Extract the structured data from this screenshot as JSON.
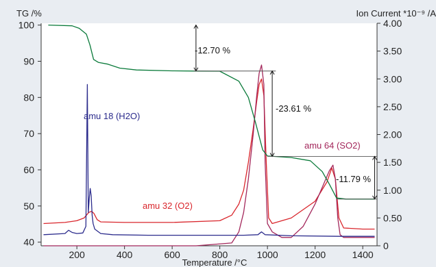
{
  "colors": {
    "background": "#e9edf2",
    "plot_background": "#ffffff",
    "axis": "#333333",
    "tg": "#0a7a3a",
    "h2o": "#2b2b8c",
    "o2": "#d9252b",
    "so2": "#a3275b",
    "annotation": "#555555"
  },
  "chart_data": {
    "type": "line",
    "title": "",
    "xlabel": "Temperature /°C",
    "ylabel_left": "TG /%",
    "ylabel_right": "Ion Current *10⁻⁹ /A",
    "xlim": [
      50,
      1460
    ],
    "ylim_left": [
      39,
      100.5
    ],
    "ylim_right": [
      0,
      4.0
    ],
    "x_ticks": [
      200,
      400,
      600,
      800,
      1000,
      1200,
      1400
    ],
    "y_left_ticks": [
      40,
      50,
      60,
      70,
      80,
      90,
      100
    ],
    "y_right_ticks": [
      "0",
      "0.50",
      "1.00",
      "1.50",
      "2.00",
      "2.50",
      "3.00",
      "3.50",
      "4.00"
    ],
    "grid": false,
    "series": [
      {
        "name": "",
        "axis": "left",
        "color": "#0a7a3a",
        "x": [
          80,
          180,
          210,
          240,
          255,
          270,
          290,
          330,
          380,
          450,
          600,
          700,
          800,
          880,
          920,
          950,
          980,
          1000,
          1030,
          1100,
          1180,
          1230,
          1260,
          1290,
          1330,
          1400,
          1450
        ],
        "y": [
          100,
          99.8,
          99.1,
          97.5,
          94.5,
          90.5,
          89.7,
          89.2,
          88.1,
          87.6,
          87.35,
          87.3,
          87.25,
          84.5,
          80.0,
          73.0,
          65.5,
          63.8,
          63.7,
          63.4,
          62.5,
          59.5,
          56.0,
          52.2,
          51.9,
          51.9,
          51.9
        ]
      },
      {
        "name": "amu 18 (H2O)",
        "axis": "right",
        "color": "#2b2b8c",
        "x": [
          60,
          150,
          165,
          180,
          200,
          225,
          238,
          244,
          248,
          252,
          256,
          260,
          264,
          268,
          275,
          300,
          350,
          500,
          700,
          900,
          960,
          975,
          990,
          1100,
          1300,
          1400,
          1450
        ],
        "y": [
          0.2,
          0.22,
          0.28,
          0.24,
          0.22,
          0.23,
          0.35,
          2.9,
          0.6,
          0.85,
          1.03,
          0.9,
          0.55,
          0.4,
          0.3,
          0.22,
          0.2,
          0.19,
          0.19,
          0.19,
          0.2,
          0.25,
          0.2,
          0.18,
          0.17,
          0.17,
          0.17
        ]
      },
      {
        "name": "amu 32 (O2)",
        "axis": "right",
        "color": "#d9252b",
        "x": [
          60,
          150,
          200,
          230,
          250,
          262,
          272,
          285,
          300,
          400,
          600,
          800,
          850,
          880,
          900,
          920,
          940,
          955,
          965,
          975,
          985,
          995,
          1005,
          1020,
          1100,
          1200,
          1250,
          1270,
          1285,
          1300,
          1320,
          1400,
          1450
        ],
        "y": [
          0.4,
          0.42,
          0.45,
          0.5,
          0.6,
          0.62,
          0.58,
          0.47,
          0.43,
          0.42,
          0.42,
          0.45,
          0.55,
          0.75,
          1.0,
          1.5,
          2.1,
          2.6,
          2.9,
          3.0,
          2.7,
          1.5,
          0.5,
          0.4,
          0.5,
          0.8,
          1.15,
          1.4,
          1.2,
          0.5,
          0.32,
          0.3,
          0.3
        ]
      },
      {
        "name": "amu 64 (SO2)",
        "axis": "right",
        "color": "#a3275b",
        "x": [
          60,
          400,
          700,
          850,
          880,
          900,
          920,
          940,
          955,
          965,
          975,
          985,
          990,
          1000,
          1020,
          1060,
          1100,
          1150,
          1200,
          1240,
          1260,
          1275,
          1285,
          1295,
          1305,
          1320,
          1400,
          1450
        ],
        "y": [
          0.0,
          0.0,
          0.0,
          0.05,
          0.25,
          0.6,
          1.2,
          2.0,
          2.7,
          3.1,
          3.25,
          2.9,
          1.5,
          0.4,
          0.25,
          0.15,
          0.15,
          0.35,
          0.75,
          1.15,
          1.35,
          1.45,
          1.2,
          0.5,
          0.2,
          0.15,
          0.15,
          0.15
        ]
      }
    ],
    "annotations": [
      {
        "text": "-12.70 %"
      },
      {
        "text": "-23.61 %"
      },
      {
        "text": "-11.79 %"
      }
    ]
  }
}
